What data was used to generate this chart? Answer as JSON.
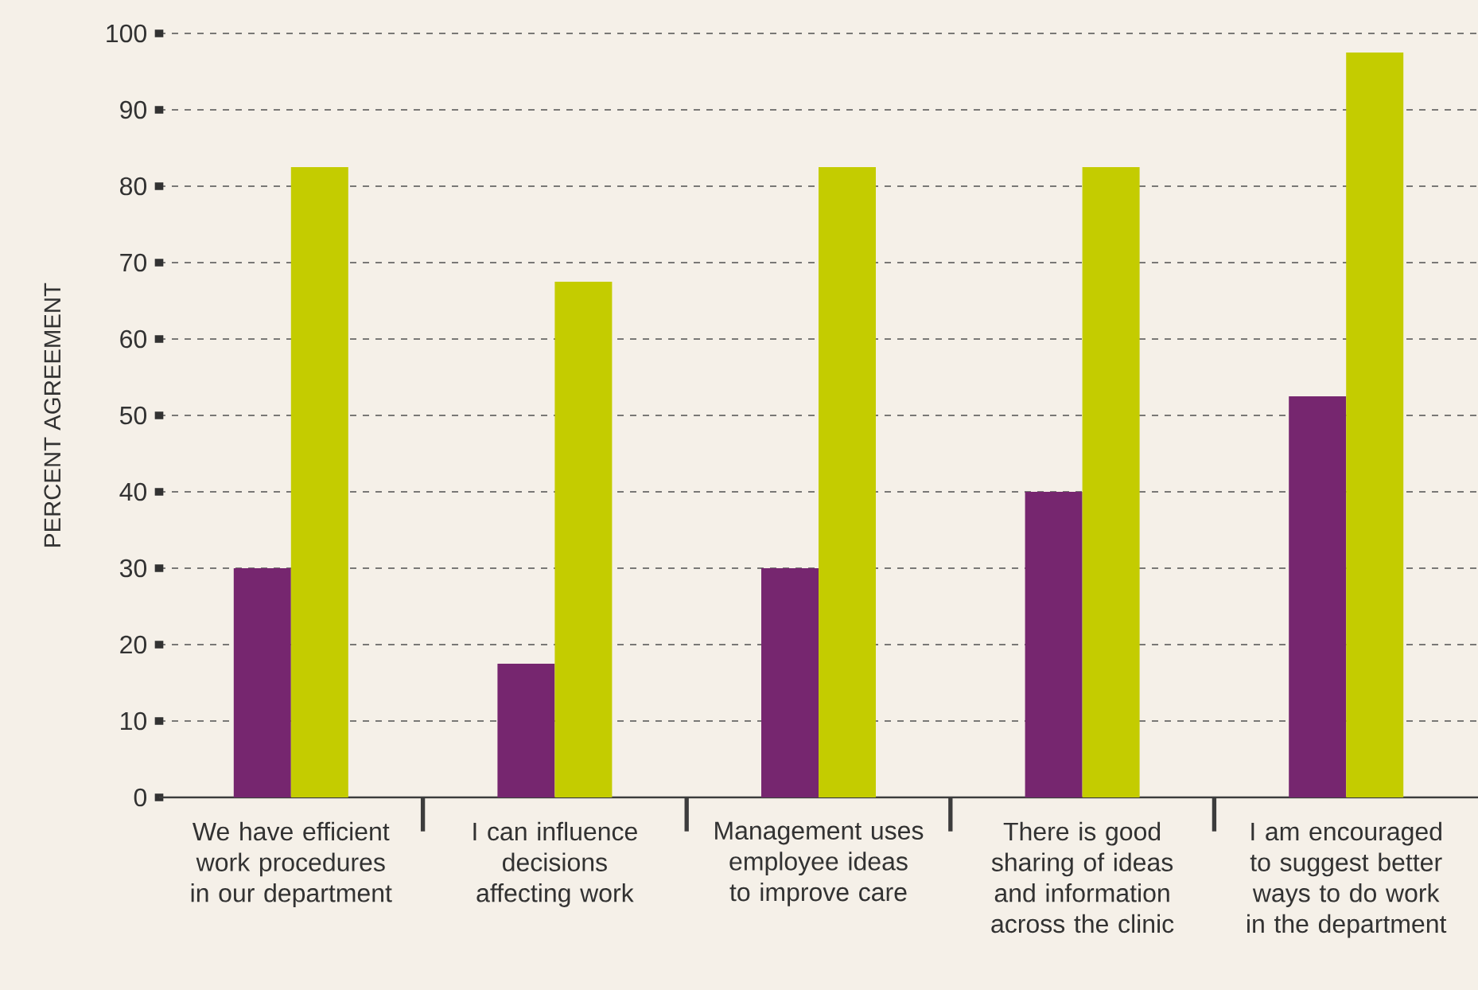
{
  "chart_data": {
    "type": "bar",
    "ylabel": "PERCENT AGREEMENT",
    "categories": [
      "We have efficient work procedures in our department",
      "I can influence decisions affecting work",
      "Management uses employee ideas to improve care",
      "There is good sharing of ideas and information across the clinic",
      "I am encouraged to suggest better ways to do work in the department"
    ],
    "series": [
      {
        "color": "#76266f",
        "values": [
          30,
          17.5,
          30,
          40,
          52.5
        ]
      },
      {
        "color": "#c4cc00",
        "values": [
          82.5,
          67.5,
          82.5,
          82.5,
          97.5
        ]
      }
    ],
    "ylim": [
      0,
      100
    ],
    "yticks": [
      0,
      10,
      20,
      30,
      40,
      50,
      60,
      70,
      80,
      90,
      100
    ],
    "grid": "y"
  }
}
